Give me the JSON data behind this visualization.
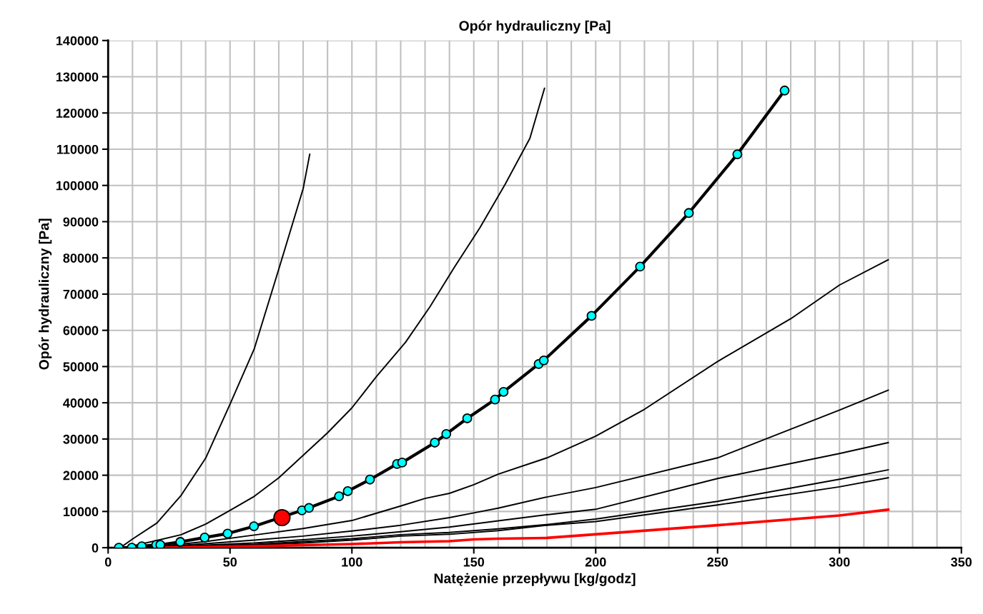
{
  "chart_data": {
    "type": "line",
    "title": "Opór hydrauliczny [Pa]",
    "xlabel": "Natężenie przepływu [kg/godz]",
    "ylabel": "Opór hydrauliczny [Pa]",
    "xlim": [
      0,
      350
    ],
    "ylim": [
      0,
      140000
    ],
    "xticks": [
      0,
      {
        "value": 10,
        "label": null
      },
      {
        "value": 20,
        "label": null
      },
      {
        "value": 30,
        "label": null
      },
      {
        "value": 40,
        "label": null
      },
      50,
      {
        "value": 60,
        "label": null
      },
      {
        "value": 70,
        "label": null
      },
      {
        "value": 80,
        "label": null
      },
      {
        "value": 90,
        "label": null
      },
      100,
      {
        "value": 110,
        "label": null
      },
      {
        "value": 120,
        "label": null
      },
      {
        "value": 130,
        "label": null
      },
      {
        "value": 140,
        "label": null
      },
      150,
      {
        "value": 160,
        "label": null
      },
      {
        "value": 170,
        "label": null
      },
      {
        "value": 180,
        "label": null
      },
      {
        "value": 190,
        "label": null
      },
      200,
      {
        "value": 210,
        "label": null
      },
      {
        "value": 220,
        "label": null
      },
      {
        "value": 230,
        "label": null
      },
      {
        "value": 240,
        "label": null
      },
      250,
      {
        "value": 260,
        "label": null
      },
      {
        "value": 270,
        "label": null
      },
      {
        "value": 280,
        "label": null
      },
      {
        "value": 290,
        "label": null
      },
      300,
      {
        "value": 310,
        "label": null
      },
      {
        "value": 320,
        "label": null
      },
      {
        "value": 330,
        "label": null
      },
      {
        "value": 340,
        "label": null
      },
      350
    ],
    "yticks": [
      0,
      10000,
      20000,
      30000,
      40000,
      50000,
      60000,
      70000,
      80000,
      90000,
      100000,
      110000,
      120000,
      130000,
      140000
    ],
    "grid": true,
    "series": [
      {
        "color": "#000000",
        "x": [
          5,
          10,
          20,
          30,
          40,
          50,
          60,
          70,
          80,
          82.7
        ],
        "values": [
          0,
          2400,
          6800,
          14500,
          24700,
          39600,
          55000,
          76900,
          99100,
          108600
        ]
      },
      {
        "color": "#000000",
        "x": [
          5,
          10,
          20,
          30,
          40,
          50,
          60,
          70,
          80,
          90,
          100,
          110,
          122,
          132,
          142,
          152.5,
          163,
          173,
          179
        ],
        "values": [
          0,
          500,
          2000,
          3600,
          6500,
          10300,
          14200,
          19300,
          25500,
          31700,
          38600,
          47200,
          56700,
          66500,
          77400,
          88300,
          100500,
          113000,
          126800
        ]
      },
      {
        "color": "#000000",
        "marker": "circle",
        "colors": [
          "#00ffff",
          "#00ffff",
          "#00ffff",
          "#00ffff",
          "#00ffff",
          "#00ffff",
          "#00ffff",
          "#00ffff",
          "#00ffff",
          "#00ffff",
          "#00ffff",
          "#00ffff",
          "#00ffff",
          "#00ffff",
          "#00ffff",
          "#00ffff",
          "#00ffff",
          "#00ffff",
          "#00ffff",
          "#00ffff",
          "#00ffff",
          "#00ffff",
          "#00ffff",
          "#00ffff",
          "#00ffff",
          "#00ffff",
          "#00ffff",
          "#00ffff"
        ],
        "x": [
          4.4,
          9.7,
          13.8,
          19.7,
          21.4,
          29.6,
          39.6,
          49,
          59.8,
          79.5,
          82.4,
          94.7,
          98.3,
          107.4,
          118.5,
          120.6,
          134,
          138.7,
          147.3,
          158.7,
          162.2,
          176.6,
          178.7,
          198.3,
          218.2,
          238.2,
          258.1,
          277.5
        ],
        "values": [
          0,
          0,
          400,
          800,
          800,
          1600,
          2800,
          3900,
          5900,
          10300,
          11000,
          14200,
          15600,
          18800,
          23100,
          23500,
          29000,
          31400,
          35700,
          40900,
          43000,
          50700,
          51700,
          64000,
          77600,
          92400,
          108600,
          126200
        ]
      },
      {
        "color": "#000000",
        "x": [
          10,
          20,
          40,
          60,
          80,
          100,
          120,
          130,
          140,
          150,
          160,
          180,
          200,
          220,
          250,
          280,
          300,
          320
        ],
        "values": [
          0,
          300,
          1700,
          3500,
          5300,
          7500,
          11500,
          13600,
          15000,
          17400,
          20300,
          24800,
          30800,
          38200,
          51400,
          63200,
          72500,
          79500
        ]
      },
      {
        "color": "#000000",
        "x": [
          10,
          20,
          40,
          60,
          80,
          100,
          120,
          140,
          150,
          160,
          180,
          200,
          250,
          300,
          320
        ],
        "values": [
          0,
          200,
          1100,
          2100,
          3200,
          4600,
          6200,
          8300,
          9600,
          10900,
          14000,
          16600,
          24800,
          38000,
          43500
        ]
      },
      {
        "color": "#000000",
        "x": [
          15,
          20,
          40,
          60,
          80,
          100,
          120,
          140,
          160,
          180,
          200,
          250,
          300,
          320
        ],
        "values": [
          0,
          100,
          700,
          1300,
          2200,
          3200,
          4400,
          5700,
          7400,
          9100,
          10600,
          19100,
          26000,
          29000
        ]
      },
      {
        "color": "#000000",
        "x": [
          15,
          20,
          40,
          60,
          80,
          100,
          120,
          140,
          160,
          180,
          200,
          250,
          300,
          320
        ],
        "values": [
          0,
          100,
          500,
          900,
          1700,
          2500,
          3600,
          4200,
          5200,
          6400,
          7900,
          12800,
          18900,
          21500
        ]
      },
      {
        "color": "#000000",
        "x": [
          15,
          20,
          40,
          60,
          80,
          100,
          120,
          140,
          160,
          180,
          200,
          250,
          300,
          320
        ],
        "values": [
          0,
          0,
          400,
          700,
          1300,
          2100,
          3200,
          3700,
          4700,
          6200,
          7200,
          11800,
          16800,
          19300
        ]
      },
      {
        "color": "#ff0000",
        "x": [
          22,
          40,
          60,
          80,
          100,
          120,
          140,
          150,
          160,
          180,
          200,
          250,
          300,
          320
        ],
        "values": [
          0,
          200,
          400,
          700,
          1000,
          1500,
          1800,
          2300,
          2500,
          2700,
          3700,
          6200,
          8900,
          10500
        ]
      },
      {
        "type": "scatter",
        "color": "#ff0000",
        "marker": "circle",
        "x": [
          71.3
        ],
        "values": [
          8300
        ]
      }
    ]
  }
}
